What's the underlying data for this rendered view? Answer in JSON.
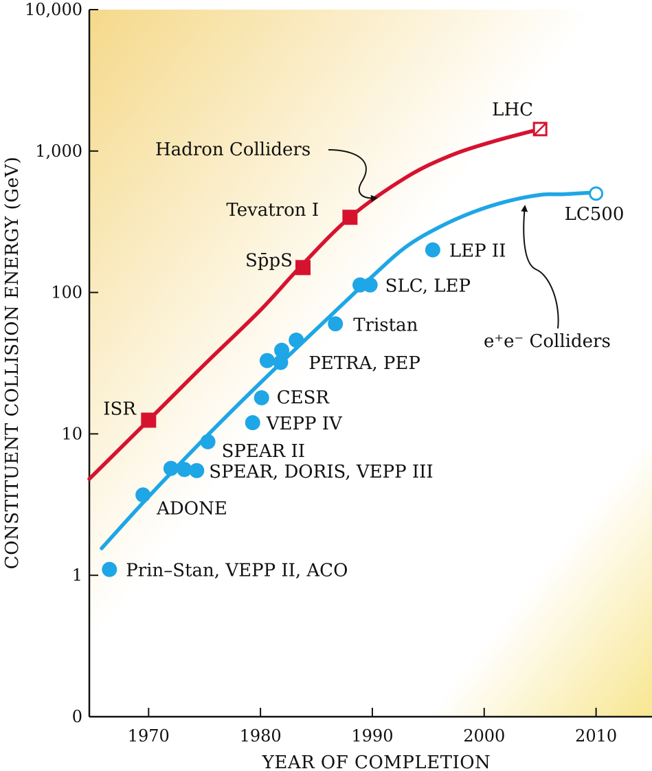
{
  "colors": {
    "hadron": "#d6132f",
    "lepton": "#1ea6e6",
    "bg_light": "#ffffff",
    "bg_warm": "#f6de8c"
  },
  "chart_data": {
    "type": "scatter",
    "scale": "log",
    "xlabel": "YEAR OF COMPLETION",
    "ylabel": "CONSTITUENT COLLISION ENERGY (GeV)",
    "xlim": [
      1964.7,
      2015
    ],
    "ylim_log10": [
      -1,
      4
    ],
    "x_ticks": [
      {
        "value": 1970,
        "label": "1970"
      },
      {
        "value": 1980,
        "label": "1980"
      },
      {
        "value": 1990,
        "label": "1990"
      },
      {
        "value": 2000,
        "label": "2000"
      },
      {
        "value": 2010,
        "label": "2010"
      }
    ],
    "y_ticks": [
      {
        "log": -1,
        "label": "0"
      },
      {
        "log": 0,
        "label": "1"
      },
      {
        "log": 1,
        "label": "10"
      },
      {
        "log": 2,
        "label": "100"
      },
      {
        "log": 3,
        "label": "1,000"
      },
      {
        "log": 4,
        "label": "10,000"
      }
    ],
    "series": [
      {
        "name": "Hadron Colliders",
        "marker": "square",
        "color_key": "hadron",
        "curve": [
          [
            1964.7,
            4.8
          ],
          [
            1970,
            12.5
          ],
          [
            1975,
            31
          ],
          [
            1980,
            75
          ],
          [
            1983.5,
            150
          ],
          [
            1988,
            340
          ],
          [
            1993,
            650
          ],
          [
            1997,
            930
          ],
          [
            2001,
            1180
          ],
          [
            2005,
            1430
          ]
        ],
        "points": [
          {
            "year": 1970,
            "energy": 12.5,
            "label": "ISR"
          },
          {
            "year": 1983.8,
            "energy": 150,
            "label": "Sp̄pS"
          },
          {
            "year": 1988,
            "energy": 340,
            "label": "Tevatron I"
          },
          {
            "year": 2005,
            "energy": 1430,
            "label": "LHC",
            "planned": true
          }
        ]
      },
      {
        "name": "e⁺e⁻ Colliders",
        "marker": "circle",
        "color_key": "lepton",
        "curve": [
          [
            1965.8,
            1.55
          ],
          [
            1970,
            3.6
          ],
          [
            1975,
            9.3
          ],
          [
            1980,
            23
          ],
          [
            1985,
            55
          ],
          [
            1990,
            130
          ],
          [
            1993,
            210
          ],
          [
            1996,
            290
          ],
          [
            1999,
            370
          ],
          [
            2002,
            440
          ],
          [
            2005,
            490
          ],
          [
            2007,
            495
          ],
          [
            2010,
            510
          ]
        ],
        "points": [
          {
            "year": 1966.5,
            "energy": 1.1,
            "label": "Prin–Stan, VEPP II, ACO"
          },
          {
            "year": 1969.5,
            "energy": 3.7,
            "label": "ADONE"
          },
          {
            "year": 1972,
            "energy": 5.7,
            "label": ""
          },
          {
            "year": 1973.2,
            "energy": 5.6,
            "label": ""
          },
          {
            "year": 1974.3,
            "energy": 5.5,
            "label": "SPEAR, DORIS, VEPP III"
          },
          {
            "year": 1975.3,
            "energy": 8.8,
            "label": "SPEAR II"
          },
          {
            "year": 1979.3,
            "energy": 12,
            "label": "VEPP IV"
          },
          {
            "year": 1980.1,
            "energy": 18,
            "label": "CESR"
          },
          {
            "year": 1980.6,
            "energy": 33,
            "label": ""
          },
          {
            "year": 1981.8,
            "energy": 32,
            "label": ""
          },
          {
            "year": 1981.9,
            "energy": 39,
            "label": ""
          },
          {
            "year": 1983.2,
            "energy": 46,
            "label": "PETRA, PEP"
          },
          {
            "year": 1986.7,
            "energy": 60,
            "label": "Tristan"
          },
          {
            "year": 1988.9,
            "energy": 113,
            "label": ""
          },
          {
            "year": 1989.8,
            "energy": 113,
            "label": "SLC, LEP"
          },
          {
            "year": 1995.4,
            "energy": 200,
            "label": "LEP II"
          },
          {
            "year": 2010,
            "energy": 500,
            "label": "LC500",
            "planned": true
          }
        ]
      }
    ],
    "annotations": [
      {
        "text": "Hadron Colliders",
        "arrow_to_series": "Hadron Colliders"
      },
      {
        "text": "e⁺e⁻ Colliders",
        "arrow_to_series": "e⁺e⁻ Colliders"
      }
    ]
  }
}
